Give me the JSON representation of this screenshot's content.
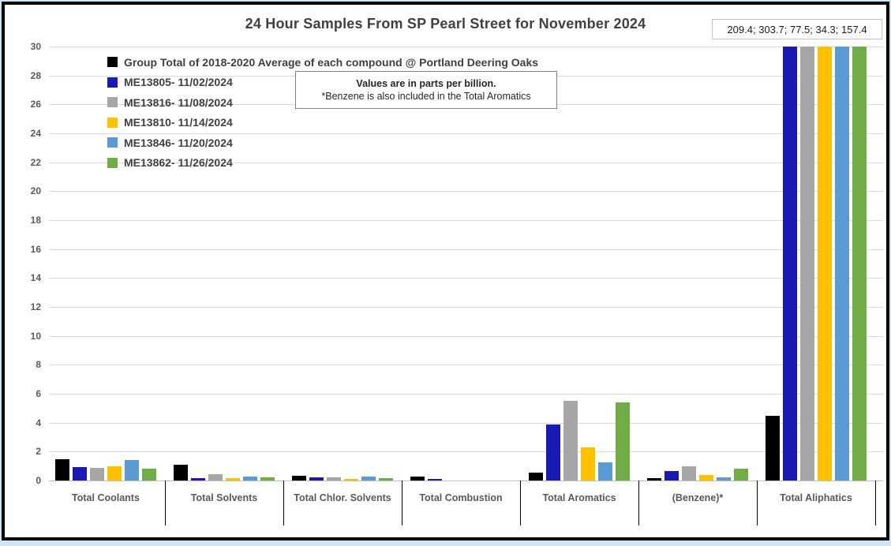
{
  "window": {
    "background_color": "#cfe4f5",
    "chart_border_color": "#000000"
  },
  "header": {
    "title": "24 Hour Samples From SP Pearl Street for November 2024",
    "callout_values": "209.4; 303.7; 77.5; 34.3; 157.4"
  },
  "note": {
    "line1": "Values are in parts per billion.",
    "line2": "*Benzene is also included in the Total Aromatics"
  },
  "chart_data": {
    "type": "bar",
    "title": "24 Hour Samples From SP Pearl Street for November 2024",
    "unit": "parts per billion",
    "categories": [
      "Total Coolants",
      "Total Solvents",
      "Total Chlor. Solvents",
      "Total Combustion",
      "Total Aromatics",
      "(Benzene)*",
      "Total Aliphatics"
    ],
    "series": [
      {
        "name": "Group Total of 2018-2020 Average of each compound @ Portland Deering Oaks",
        "color": "#000000",
        "values": [
          1.5,
          1.1,
          0.35,
          0.3,
          0.55,
          0.15,
          4.5
        ]
      },
      {
        "name": "ME13805- 11/02/2024",
        "color": "#1919b4",
        "values": [
          0.95,
          0.15,
          0.2,
          0.1,
          3.9,
          0.65,
          209.4
        ]
      },
      {
        "name": "ME13816- 11/08/2024",
        "color": "#a6a6a6",
        "values": [
          0.85,
          0.45,
          0.2,
          0,
          5.5,
          1.0,
          303.7
        ]
      },
      {
        "name": "ME13810- 11/14/2024",
        "color": "#ffc000",
        "values": [
          1.0,
          0.15,
          0.1,
          0,
          2.3,
          0.4,
          77.5
        ]
      },
      {
        "name": "ME13846- 11/20/2024",
        "color": "#5b9bd5",
        "values": [
          1.4,
          0.25,
          0.25,
          0,
          1.25,
          0.2,
          34.3
        ]
      },
      {
        "name": "ME13862- 11/26/2024",
        "color": "#70ad47",
        "values": [
          0.8,
          0.2,
          0.15,
          0,
          5.4,
          0.8,
          157.4
        ]
      }
    ],
    "ylim": [
      0,
      30
    ],
    "ytick_step": 2,
    "grid": true,
    "legend_position": "inside-top-left",
    "bars_clipped_at_ymax": "Total Aliphatics sample bars exceed axis; true values shown in callout: 209.4; 303.7; 77.5; 34.3; 157.4",
    "annotation": "Values are in parts per billion. *Benzene is also included in the Total Aromatics"
  }
}
